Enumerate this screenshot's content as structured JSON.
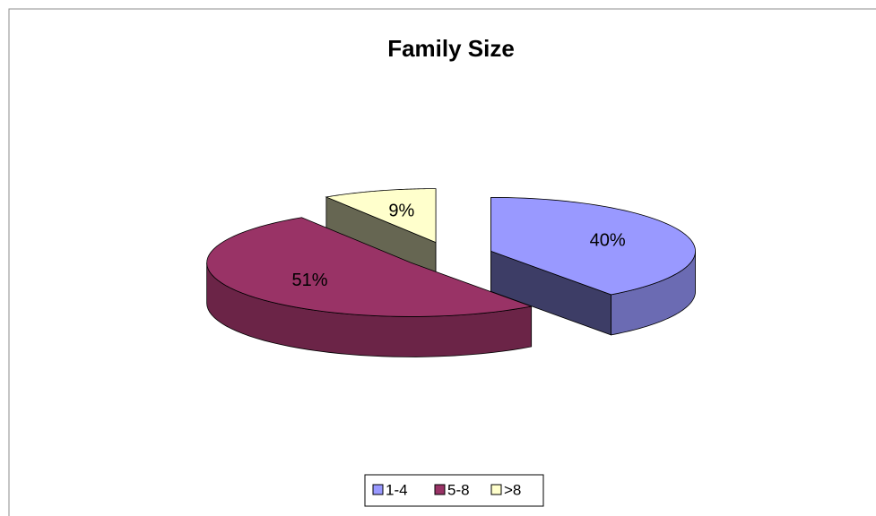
{
  "chart_data": {
    "type": "pie",
    "title": "Family Size",
    "categories": [
      "1-4",
      "5-8",
      ">8"
    ],
    "values": [
      40,
      51,
      9
    ],
    "value_labels": [
      "40%",
      "51%",
      "9%"
    ],
    "colors": [
      "#9999ff",
      "#993366",
      "#ffffcc"
    ],
    "legend": "bottom"
  }
}
